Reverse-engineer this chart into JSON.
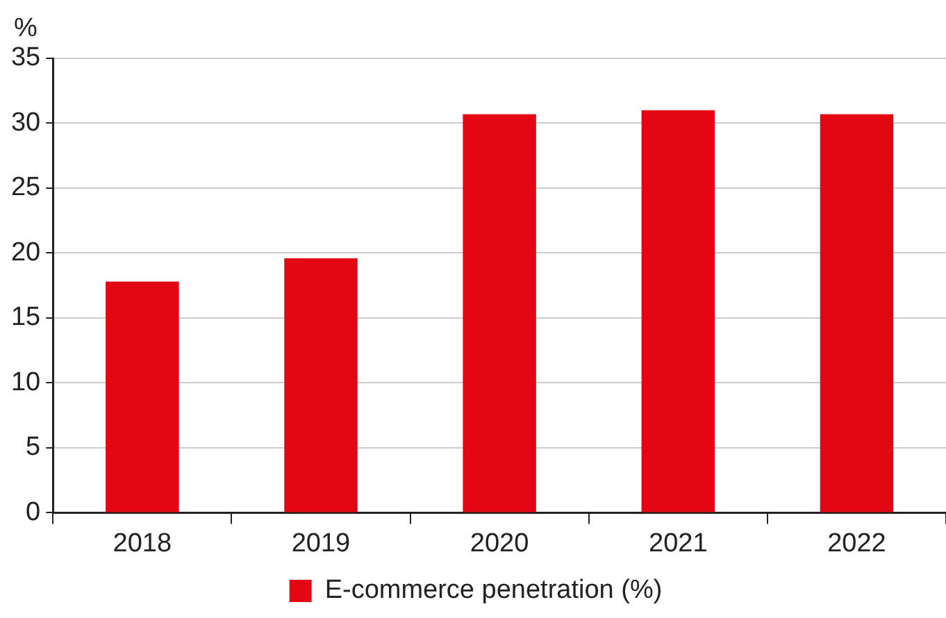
{
  "chart_data": {
    "type": "bar",
    "ylabel": "%",
    "categories": [
      "2018",
      "2019",
      "2020",
      "2021",
      "2022"
    ],
    "series": [
      {
        "name": "E-commerce penetration (%)",
        "color": "#e30613",
        "values": [
          17.8,
          19.6,
          30.7,
          31.0,
          30.7
        ]
      }
    ],
    "ylim": [
      0,
      35
    ],
    "yticks": [
      0,
      5,
      10,
      15,
      20,
      25,
      30,
      35
    ],
    "grid": "y",
    "legend": "bottom"
  }
}
